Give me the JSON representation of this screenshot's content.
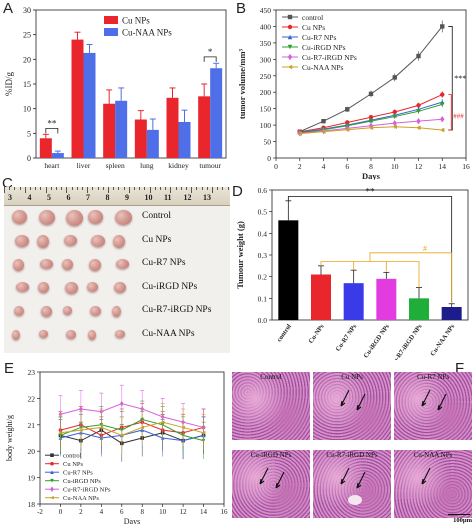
{
  "panels": {
    "A": {
      "letter": "A"
    },
    "B": {
      "letter": "B"
    },
    "C": {
      "letter": "C"
    },
    "D": {
      "letter": "D"
    },
    "E": {
      "letter": "E"
    },
    "F": {
      "letter": "F"
    }
  },
  "chart_data": [
    {
      "id": "A",
      "type": "bar",
      "ylabel": "%ID/g",
      "ylim": [
        0,
        30
      ],
      "yticks": [
        0,
        5,
        10,
        15,
        20,
        25,
        30
      ],
      "categories": [
        "heart",
        "liver",
        "spleen",
        "lung",
        "kidney",
        "tumour"
      ],
      "series": [
        {
          "name": "Cu NPs",
          "color": "#e8262b",
          "values": [
            4.0,
            24.0,
            11.0,
            7.8,
            12.2,
            12.5
          ],
          "errors": [
            0.8,
            1.5,
            2.8,
            1.8,
            2.0,
            2.5
          ]
        },
        {
          "name": "Cu-NAA NPs",
          "color": "#4f6fe8",
          "values": [
            1.0,
            21.3,
            11.6,
            5.7,
            7.3,
            18.2
          ],
          "errors": [
            0.4,
            1.7,
            2.6,
            2.2,
            2.4,
            1.0
          ]
        }
      ],
      "annotations": [
        {
          "text": "**",
          "category": "heart",
          "y": 6.0
        },
        {
          "text": "*",
          "category": "tumour",
          "y": 20.5
        }
      ],
      "legend": "top-right"
    },
    {
      "id": "B",
      "type": "line",
      "xlabel": "Days",
      "ylabel": "tumor volume/mm³",
      "xlim": [
        0,
        16
      ],
      "ylim": [
        0,
        450
      ],
      "xticks": [
        0,
        2,
        4,
        6,
        8,
        10,
        12,
        14,
        16
      ],
      "yticks": [
        0,
        50,
        100,
        150,
        200,
        250,
        300,
        350,
        400,
        450
      ],
      "x": [
        2,
        4,
        6,
        8,
        10,
        12,
        14
      ],
      "series": [
        {
          "name": "control",
          "color": "#555555",
          "marker": "square",
          "values": [
            80,
            112,
            148,
            195,
            245,
            310,
            400
          ]
        },
        {
          "name": "Cu NPs",
          "color": "#e8262b",
          "marker": "circle",
          "values": [
            80,
            92,
            108,
            124,
            140,
            160,
            193
          ]
        },
        {
          "name": "Cu-R7 NPs",
          "color": "#3a5fd9",
          "marker": "triangle",
          "values": [
            78,
            88,
            100,
            115,
            130,
            148,
            170
          ]
        },
        {
          "name": "Cu-iRGD NPs",
          "color": "#2ca02c",
          "marker": "triangle-down",
          "values": [
            76,
            86,
            98,
            112,
            126,
            142,
            163
          ]
        },
        {
          "name": "Cu-R7-iRGD NPs",
          "color": "#d65fe0",
          "marker": "diamond",
          "values": [
            75,
            82,
            90,
            98,
            106,
            112,
            118
          ]
        },
        {
          "name": "Cu-NAA NPs",
          "color": "#c9a227",
          "marker": "triangle-left",
          "values": [
            74,
            80,
            86,
            92,
            95,
            92,
            85
          ]
        }
      ],
      "annotations": [
        {
          "text": "***",
          "color": "#111111"
        },
        {
          "text": "###",
          "color": "#e8262b"
        }
      ],
      "legend": "top-left"
    },
    {
      "id": "D",
      "type": "bar",
      "ylabel": "Tumour weight (g)",
      "ylim": [
        0,
        0.6
      ],
      "yticks": [
        0.0,
        0.1,
        0.2,
        0.3,
        0.4,
        0.5,
        0.6
      ],
      "categories": [
        "control",
        "Cu-NPs",
        "Cu-R7 NPs",
        "Cu-iRGD NPs",
        "Cu-R7-iRGD NPs",
        "Cu-NAA NPs"
      ],
      "values": [
        0.46,
        0.21,
        0.17,
        0.19,
        0.1,
        0.06
      ],
      "errors": [
        0.09,
        0.04,
        0.06,
        0.03,
        0.05,
        0.015
      ],
      "colors": [
        "#000000",
        "#e8262b",
        "#3a3ae8",
        "#e23ce0",
        "#1fae3a",
        "#1c1c8a"
      ],
      "annotations": [
        {
          "text": "**",
          "color": "#111111"
        },
        {
          "text": "#",
          "color": "#e8a317"
        }
      ]
    },
    {
      "id": "E",
      "type": "line",
      "xlabel": "Days",
      "ylabel": "body weight/g",
      "xlim": [
        -2,
        16
      ],
      "ylim": [
        18,
        23
      ],
      "xticks": [
        -2,
        0,
        2,
        4,
        6,
        8,
        10,
        12,
        14,
        16
      ],
      "yticks": [
        18,
        19,
        20,
        21,
        22,
        23
      ],
      "x": [
        0,
        2,
        4,
        6,
        8,
        10,
        12,
        14
      ],
      "series": [
        {
          "name": "control",
          "color": "#333333",
          "marker": "square",
          "values": [
            20.6,
            20.4,
            20.8,
            20.3,
            20.5,
            20.7,
            20.4,
            20.6
          ]
        },
        {
          "name": "Cu NPs",
          "color": "#e8262b",
          "marker": "circle",
          "values": [
            20.8,
            21.0,
            20.6,
            20.9,
            21.1,
            20.8,
            20.7,
            20.9
          ]
        },
        {
          "name": "Cu-R7 NPs",
          "color": "#3a5fd9",
          "marker": "triangle",
          "values": [
            20.5,
            20.7,
            20.5,
            20.6,
            20.8,
            20.5,
            20.4,
            20.6
          ]
        },
        {
          "name": "Cu-iRGD NPs",
          "color": "#2ca02c",
          "marker": "triangle-down",
          "values": [
            20.6,
            20.9,
            21.0,
            20.8,
            21.2,
            21.0,
            20.6,
            20.4
          ]
        },
        {
          "name": "Cu-R7-iRGD NPs",
          "color": "#d65fe0",
          "marker": "diamond",
          "values": [
            21.4,
            21.6,
            21.5,
            21.8,
            21.6,
            21.3,
            21.1,
            20.9
          ]
        },
        {
          "name": "Cu-NAA NPs",
          "color": "#c9a227",
          "marker": "triangle-left",
          "values": [
            20.7,
            20.8,
            20.9,
            20.6,
            20.9,
            21.1,
            20.9,
            20.7
          ]
        }
      ],
      "errors": 0.7,
      "legend": "bottom-left"
    }
  ],
  "photo_c": {
    "ruler_numbers": [
      "3",
      "4",
      "5",
      "6",
      "7",
      "8",
      "9",
      "10",
      "11",
      "12",
      "13"
    ],
    "rows": [
      {
        "label": "Control",
        "count": 5
      },
      {
        "label": "Cu NPs",
        "count": 5
      },
      {
        "label": "Cu-R7 NPs",
        "count": 5
      },
      {
        "label": "Cu-iRGD NPs",
        "count": 5
      },
      {
        "label": "Cu-R7-iRGD NPs",
        "count": 5
      },
      {
        "label": "Cu-NAA NPs",
        "count": 5
      }
    ]
  },
  "histology_f": {
    "tiles": [
      {
        "label": "Control"
      },
      {
        "label": "Cu NPs"
      },
      {
        "label": "Cu-R7 NPs"
      },
      {
        "label": "Cu-iRGD NPs"
      },
      {
        "label": "Cu-R7-iRGD NPs"
      },
      {
        "label": "Cu-NAA NPs"
      }
    ],
    "scale_text": "100μm"
  },
  "colors": {
    "tissue_base": "#d78cc4",
    "tissue_dark": "#8a3d8e",
    "paper_bg": "#f2f0ed"
  }
}
